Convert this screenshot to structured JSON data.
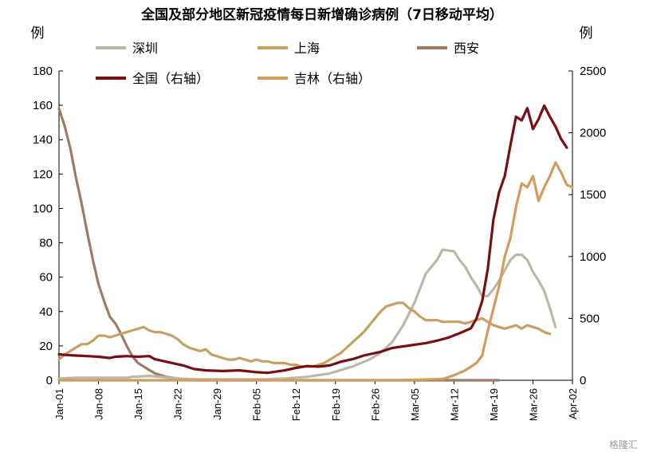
{
  "chart_data": {
    "type": "line",
    "title": "全国及部分地区新冠疫情每日新增确诊病例（7日移动平均）",
    "y_left_label": "例",
    "y_right_label": "例",
    "y_left_lim": [
      0,
      180
    ],
    "y_right_lim": [
      0,
      2500
    ],
    "y_left_ticks": [
      "0",
      "20",
      "40",
      "60",
      "80",
      "100",
      "120",
      "140",
      "160",
      "180"
    ],
    "y_right_ticks": [
      "0",
      "500",
      "1000",
      "1500",
      "2000",
      "2500"
    ],
    "x_ticks": [
      "Jan-01",
      "Jan-08",
      "Jan-15",
      "Jan-22",
      "Jan-29",
      "Feb-05",
      "Feb-12",
      "Feb-19",
      "Feb-26",
      "Mar-05",
      "Mar-12",
      "Mar-19",
      "Mar-26",
      "Apr-02"
    ],
    "x_unit": "day index from Jan-01",
    "x_range": [
      0,
      91
    ],
    "legend_placement": "top",
    "grid": false,
    "series": [
      {
        "name": "深圳",
        "axis": "left",
        "color": "#b9b9a8",
        "points": [
          [
            0,
            1
          ],
          [
            3,
            1.5
          ],
          [
            6,
            1.5
          ],
          [
            9,
            1.5
          ],
          [
            12,
            1.5
          ],
          [
            13,
            2
          ],
          [
            16,
            2.5
          ],
          [
            18,
            2
          ],
          [
            21,
            1
          ],
          [
            24,
            0.5
          ],
          [
            28,
            0.5
          ],
          [
            32,
            0.5
          ],
          [
            36,
            0.5
          ],
          [
            40,
            1
          ],
          [
            44,
            2
          ],
          [
            48,
            4
          ],
          [
            52,
            8
          ],
          [
            55,
            12
          ],
          [
            57,
            16
          ],
          [
            59,
            22
          ],
          [
            61,
            32
          ],
          [
            63,
            45
          ],
          [
            65,
            62
          ],
          [
            67,
            70
          ],
          [
            68,
            76
          ],
          [
            70,
            75
          ],
          [
            71,
            70
          ],
          [
            72,
            66
          ],
          [
            73,
            60
          ],
          [
            74,
            55
          ],
          [
            75,
            49
          ],
          [
            76,
            49
          ],
          [
            77,
            53
          ],
          [
            78,
            58
          ],
          [
            79,
            64
          ],
          [
            80,
            70
          ],
          [
            81,
            73
          ],
          [
            82,
            73
          ],
          [
            83,
            70
          ],
          [
            84,
            63
          ],
          [
            85,
            58
          ],
          [
            86,
            52
          ],
          [
            87,
            42
          ],
          [
            88,
            31
          ]
        ]
      },
      {
        "name": "上海",
        "axis": "left",
        "color": "#c8a062",
        "points": [
          [
            0,
            12
          ],
          [
            1,
            15
          ],
          [
            2,
            17
          ],
          [
            3,
            19
          ],
          [
            4,
            21
          ],
          [
            5,
            21
          ],
          [
            6,
            23
          ],
          [
            7,
            26
          ],
          [
            8,
            26
          ],
          [
            9,
            25
          ],
          [
            10,
            26
          ],
          [
            11,
            27
          ],
          [
            12,
            28
          ],
          [
            13,
            29
          ],
          [
            14,
            30
          ],
          [
            15,
            31
          ],
          [
            16,
            29
          ],
          [
            17,
            28
          ],
          [
            18,
            28
          ],
          [
            19,
            27
          ],
          [
            20,
            26
          ],
          [
            21,
            24
          ],
          [
            22,
            21
          ],
          [
            23,
            19
          ],
          [
            24,
            18
          ],
          [
            25,
            17
          ],
          [
            26,
            18
          ],
          [
            27,
            15
          ],
          [
            28,
            14
          ],
          [
            29,
            13
          ],
          [
            30,
            12
          ],
          [
            31,
            12
          ],
          [
            32,
            13
          ],
          [
            33,
            12
          ],
          [
            34,
            11
          ],
          [
            35,
            12
          ],
          [
            36,
            11
          ],
          [
            37,
            11
          ],
          [
            38,
            10
          ],
          [
            39,
            10
          ],
          [
            40,
            10
          ],
          [
            41,
            9
          ],
          [
            42,
            9
          ],
          [
            43,
            8
          ],
          [
            44,
            8
          ],
          [
            45,
            8
          ],
          [
            46,
            9
          ],
          [
            47,
            10
          ],
          [
            48,
            12
          ],
          [
            49,
            14
          ],
          [
            50,
            16
          ],
          [
            51,
            19
          ],
          [
            52,
            22
          ],
          [
            53,
            25
          ],
          [
            54,
            28
          ],
          [
            55,
            32
          ],
          [
            56,
            36
          ],
          [
            57,
            40
          ],
          [
            58,
            43
          ],
          [
            59,
            44
          ],
          [
            60,
            45
          ],
          [
            61,
            45
          ],
          [
            62,
            42
          ],
          [
            63,
            40
          ],
          [
            64,
            37
          ],
          [
            65,
            35
          ],
          [
            66,
            35
          ],
          [
            67,
            35
          ],
          [
            68,
            34
          ],
          [
            69,
            34
          ],
          [
            70,
            34
          ],
          [
            71,
            34
          ],
          [
            72,
            33
          ],
          [
            73,
            34
          ],
          [
            74,
            35
          ],
          [
            75,
            36
          ],
          [
            76,
            34
          ],
          [
            77,
            32
          ],
          [
            78,
            31
          ],
          [
            79,
            30
          ],
          [
            80,
            31
          ],
          [
            81,
            32
          ],
          [
            82,
            30
          ],
          [
            83,
            32
          ],
          [
            84,
            31
          ],
          [
            85,
            30
          ],
          [
            86,
            28
          ],
          [
            87,
            27
          ]
        ]
      },
      {
        "name": "西安",
        "axis": "left",
        "color": "#9e7b63",
        "points": [
          [
            0,
            158
          ],
          [
            1,
            148
          ],
          [
            2,
            135
          ],
          [
            3,
            118
          ],
          [
            4,
            103
          ],
          [
            5,
            86
          ],
          [
            6,
            70
          ],
          [
            7,
            56
          ],
          [
            8,
            46
          ],
          [
            9,
            37
          ],
          [
            10,
            33
          ],
          [
            11,
            27
          ],
          [
            12,
            20
          ],
          [
            13,
            14
          ],
          [
            14,
            10
          ],
          [
            15,
            8
          ],
          [
            16,
            6
          ],
          [
            17,
            4
          ],
          [
            18,
            3
          ],
          [
            19,
            2
          ],
          [
            20,
            1.5
          ],
          [
            21,
            1
          ],
          [
            22,
            0.5
          ],
          [
            24,
            0
          ],
          [
            30,
            0
          ],
          [
            40,
            0
          ],
          [
            50,
            0
          ],
          [
            60,
            0
          ],
          [
            70,
            0
          ],
          [
            78,
            0
          ]
        ]
      },
      {
        "name": "全国（右轴）",
        "axis": "right",
        "color": "#7a0f12",
        "points": [
          [
            0,
            210
          ],
          [
            1,
            205
          ],
          [
            3,
            200
          ],
          [
            5,
            195
          ],
          [
            7,
            190
          ],
          [
            9,
            180
          ],
          [
            10,
            190
          ],
          [
            12,
            195
          ],
          [
            14,
            190
          ],
          [
            16,
            195
          ],
          [
            17,
            170
          ],
          [
            20,
            140
          ],
          [
            22,
            120
          ],
          [
            24,
            90
          ],
          [
            26,
            80
          ],
          [
            29,
            75
          ],
          [
            32,
            80
          ],
          [
            35,
            65
          ],
          [
            37,
            60
          ],
          [
            40,
            80
          ],
          [
            42,
            100
          ],
          [
            44,
            115
          ],
          [
            46,
            110
          ],
          [
            48,
            120
          ],
          [
            50,
            150
          ],
          [
            52,
            170
          ],
          [
            54,
            200
          ],
          [
            57,
            230
          ],
          [
            59,
            260
          ],
          [
            62,
            280
          ],
          [
            65,
            300
          ],
          [
            67,
            320
          ],
          [
            69,
            345
          ],
          [
            71,
            380
          ],
          [
            73,
            420
          ],
          [
            74,
            500
          ],
          [
            75,
            640
          ],
          [
            76,
            900
          ],
          [
            77,
            1300
          ],
          [
            78,
            1520
          ],
          [
            79,
            1650
          ],
          [
            80,
            1900
          ],
          [
            81,
            2130
          ],
          [
            82,
            2100
          ],
          [
            83,
            2200
          ],
          [
            84,
            2030
          ],
          [
            85,
            2110
          ],
          [
            86,
            2220
          ],
          [
            87,
            2130
          ],
          [
            88,
            2050
          ],
          [
            89,
            1950
          ],
          [
            90,
            1880
          ]
        ]
      },
      {
        "name": "吉林（右轴）",
        "axis": "right",
        "color": "#d39b5c",
        "points": [
          [
            0,
            0
          ],
          [
            20,
            0
          ],
          [
            40,
            0
          ],
          [
            60,
            0
          ],
          [
            64,
            5
          ],
          [
            68,
            10
          ],
          [
            70,
            40
          ],
          [
            72,
            80
          ],
          [
            74,
            140
          ],
          [
            75,
            200
          ],
          [
            76,
            400
          ],
          [
            77,
            580
          ],
          [
            78,
            760
          ],
          [
            79,
            1000
          ],
          [
            80,
            1150
          ],
          [
            81,
            1400
          ],
          [
            82,
            1590
          ],
          [
            83,
            1560
          ],
          [
            84,
            1650
          ],
          [
            85,
            1450
          ],
          [
            86,
            1560
          ],
          [
            87,
            1650
          ],
          [
            88,
            1760
          ],
          [
            89,
            1680
          ],
          [
            90,
            1580
          ],
          [
            91,
            1560
          ]
        ]
      }
    ]
  },
  "watermark": "格隆汇"
}
